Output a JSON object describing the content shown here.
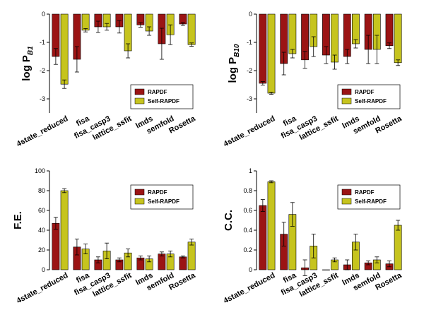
{
  "colors": {
    "rapdf": "#9b1414",
    "self_rapdf": "#c6c41e",
    "error_bar": "#000000"
  },
  "charts": [
    {
      "type": "bar",
      "ylabel_main": "log P",
      "ylabel_sub": "B1",
      "ylim": [
        -3.5,
        0
      ],
      "yticks": [
        0,
        -1,
        -2,
        -3
      ],
      "legend_position": "bottom-right",
      "categories": [
        "4state_reduced",
        "fisa",
        "fisa_casp3",
        "lattice_ssfit",
        "lmds",
        "semfold",
        "Rosetta"
      ],
      "series": [
        {
          "name": "RAPDF",
          "values": [
            -1.5,
            -1.6,
            -0.45,
            -0.45,
            -0.38,
            -1.05,
            -0.35
          ],
          "errors": [
            0.28,
            0.45,
            0.2,
            0.22,
            0.08,
            0.55,
            0.05
          ]
        },
        {
          "name": "Self-RAPDF",
          "values": [
            -2.48,
            -0.57,
            -0.45,
            -1.3,
            -0.6,
            -0.73,
            -1.08
          ],
          "errors": [
            0.15,
            0.06,
            0.12,
            0.25,
            0.15,
            0.35,
            0.06
          ]
        }
      ]
    },
    {
      "type": "bar",
      "ylabel_main": "log P",
      "ylabel_sub": "B10",
      "ylim": [
        -3.5,
        0
      ],
      "yticks": [
        0,
        -1,
        -2,
        -3
      ],
      "legend_position": "bottom-right",
      "categories": [
        "4state_reduced",
        "fisa",
        "fisa_casp3",
        "lattice_ssfit",
        "lmds",
        "semfold",
        "Rosetta"
      ],
      "series": [
        {
          "name": "RAPDF",
          "values": [
            -2.45,
            -1.75,
            -1.62,
            -1.45,
            -1.5,
            -1.25,
            -1.12
          ],
          "errors": [
            0.06,
            0.4,
            0.3,
            0.3,
            0.25,
            0.5,
            0.1
          ]
        },
        {
          "name": "Self-RAPDF",
          "values": [
            -2.8,
            -1.4,
            -1.15,
            -1.7,
            -1.05,
            -1.25,
            -1.72
          ],
          "errors": [
            0.04,
            0.15,
            0.35,
            0.25,
            0.15,
            0.5,
            0.1
          ]
        }
      ]
    },
    {
      "type": "bar",
      "ylabel_main": "F.E.",
      "ylabel_sub": "",
      "ylim": [
        0,
        100
      ],
      "yticks": [
        0,
        20,
        40,
        60,
        80,
        100
      ],
      "legend_position": "top-right",
      "categories": [
        "4state_reduced",
        "fisa",
        "fisa_casp3",
        "lattice_ssfit",
        "lmds",
        "semfold",
        "Rosetta"
      ],
      "series": [
        {
          "name": "RAPDF",
          "values": [
            47,
            23,
            10,
            10,
            12,
            16,
            13
          ],
          "errors": [
            6,
            8,
            3,
            2,
            2,
            2,
            1
          ]
        },
        {
          "name": "Self-RAPDF",
          "values": [
            80,
            21,
            19,
            17,
            11,
            16,
            28
          ],
          "errors": [
            2,
            5,
            8,
            4,
            3,
            3,
            3
          ]
        }
      ]
    },
    {
      "type": "bar",
      "ylabel_main": "C.C.",
      "ylabel_sub": "",
      "ylim": [
        0,
        1.0
      ],
      "yticks": [
        0.0,
        0.2,
        0.4,
        0.6,
        0.8,
        1.0
      ],
      "legend_position": "top-right",
      "categories": [
        "4state_reduced",
        "fisa",
        "fisa_casp3",
        "lattice_ssfit",
        "lmds",
        "semfold",
        "Rosetta"
      ],
      "series": [
        {
          "name": "RAPDF",
          "values": [
            0.65,
            0.36,
            0.02,
            0.0,
            0.05,
            0.07,
            0.06
          ],
          "errors": [
            0.06,
            0.12,
            0.08,
            0.0,
            0.05,
            0.02,
            0.03
          ]
        },
        {
          "name": "Self-RAPDF",
          "values": [
            0.89,
            0.56,
            0.24,
            0.1,
            0.28,
            0.1,
            0.45
          ],
          "errors": [
            0.01,
            0.12,
            0.12,
            0.02,
            0.08,
            0.03,
            0.05
          ]
        }
      ]
    }
  ]
}
